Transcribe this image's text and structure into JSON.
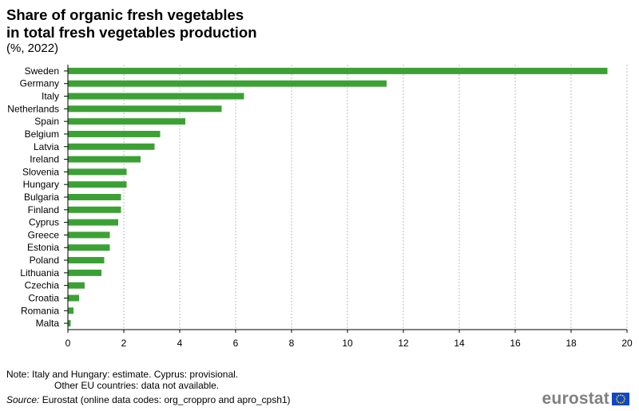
{
  "header": {
    "title_line1": "Share of organic fresh vegetables",
    "title_line2": "in total fresh vegetables production",
    "subtitle": "(%, 2022)"
  },
  "footer": {
    "note_line1": "Note: Italy and Hungary: estimate. Cyprus: provisional.",
    "note_line2": "Other EU countries: data not available.",
    "source_label": "Source:",
    "source_text": " Eurostat (online data codes: org_croppro and apro_cpsh1)",
    "logo_text": "eurostat"
  },
  "colors": {
    "bar": "#3ca135",
    "grid": "#bdbdbd",
    "axis": "#000000",
    "flag": "#0e47cb",
    "stars": "#ffde00"
  },
  "chart_data": {
    "type": "bar",
    "orientation": "horizontal",
    "categories": [
      "Sweden",
      "Germany",
      "Italy",
      "Netherlands",
      "Spain",
      "Belgium",
      "Latvia",
      "Ireland",
      "Slovenia",
      "Hungary",
      "Bulgaria",
      "Finland",
      "Cyprus",
      "Greece",
      "Estonia",
      "Poland",
      "Lithuania",
      "Czechia",
      "Croatia",
      "Romania",
      "Malta"
    ],
    "values": [
      19.3,
      11.4,
      6.3,
      5.5,
      4.2,
      3.3,
      3.1,
      2.6,
      2.1,
      2.1,
      1.9,
      1.9,
      1.8,
      1.5,
      1.5,
      1.3,
      1.2,
      0.6,
      0.4,
      0.2,
      0.1
    ],
    "xlim": [
      0,
      20
    ],
    "xticks": [
      0,
      2,
      4,
      6,
      8,
      10,
      12,
      14,
      16,
      18,
      20
    ],
    "grid": true,
    "legend": "none"
  }
}
